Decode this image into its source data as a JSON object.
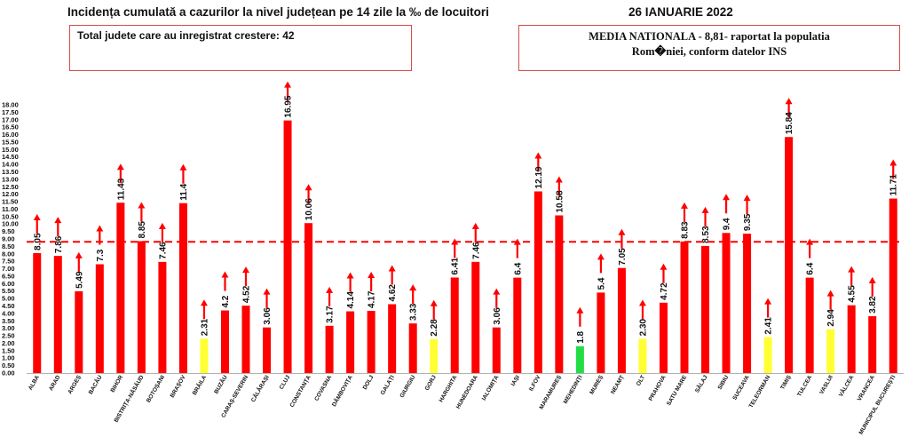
{
  "header": {
    "title": "Incidența cumulată a cazurilor la nivel județean pe 14 zile la ‰ de locuitori",
    "date": "26 IANUARIE 2022",
    "total_box": "Total judete care au inregistrat crestere: 42",
    "media_box_line1": "MEDIA NATIONALA - 8,81-  raportat la populatia",
    "media_box_line2": "Rom�niei, conform datelor INS"
  },
  "colors": {
    "bar_red": "#ff0000",
    "bar_yellow": "#ffff33",
    "bar_green": "#22dd44",
    "reference_line": "#ff0000",
    "arrow": "#ff0000"
  },
  "chart_data": {
    "type": "bar",
    "title": "Incidența cumulată a cazurilor la nivel județean pe 14 zile la ‰ de locuitori",
    "xlabel": "",
    "ylabel": "",
    "ylim": [
      0,
      18
    ],
    "ytick_step": 0.5,
    "ytick_labels": [
      "0.00",
      "0.50",
      "1.00",
      "1.50",
      "2.00",
      "2.50",
      "3.00",
      "3.50",
      "4.00",
      "4.50",
      "5.00",
      "5.50",
      "6.00",
      "6.50",
      "7.00",
      "7.50",
      "8.00",
      "8.50",
      "9.00",
      "9.50",
      "10.00",
      "10.50",
      "11.00",
      "11.50",
      "12.00",
      "12.50",
      "13.00",
      "13.50",
      "14.00",
      "14.50",
      "15.00",
      "15.50",
      "16.00",
      "16.50",
      "17.00",
      "17.50",
      "18.00"
    ],
    "reference_line": {
      "value": 8.81,
      "style": "dashed"
    },
    "grid": false,
    "increase_arrows": true,
    "categories": [
      "ALBA",
      "ARAD",
      "ARGEȘ",
      "BACĂU",
      "BIHOR",
      "BISTRIȚA-NĂSĂUD",
      "BOTOȘANI",
      "BRAȘOV",
      "BRĂILA",
      "BUZĂU",
      "CARAȘ-SEVERIN",
      "CĂLĂRAȘI",
      "CLUJ",
      "CONSTANȚA",
      "COVASNA",
      "DÂMBOVIȚA",
      "DOLJ",
      "GALAȚI",
      "GIURGIU",
      "GORJ",
      "HARGHITA",
      "HUNEDOARA",
      "IALOMIȚA",
      "IAȘI",
      "ILFOV",
      "MARAMUREȘ",
      "MEHEDINȚI",
      "MUREȘ",
      "NEAMȚ",
      "OLT",
      "PRAHOVA",
      "SATU MARE",
      "SĂLAJ",
      "SIBIU",
      "SUCEAVA",
      "TELEORMAN",
      "TIMIȘ",
      "TULCEA",
      "VASLUI",
      "VÂLCEA",
      "VRANCEA",
      "MUNICIPUL BUCUREȘTI"
    ],
    "values": [
      8.05,
      7.86,
      5.49,
      7.3,
      11.43,
      8.85,
      7.46,
      11.4,
      2.31,
      4.2,
      4.52,
      3.06,
      16.95,
      10.06,
      3.17,
      4.14,
      4.17,
      4.62,
      3.33,
      2.28,
      6.41,
      7.46,
      3.06,
      6.4,
      12.19,
      10.58,
      1.8,
      5.4,
      7.05,
      2.3,
      4.72,
      8.83,
      8.53,
      9.4,
      9.35,
      2.41,
      15.84,
      6.4,
      2.94,
      4.55,
      3.82,
      11.71
    ],
    "value_labels": [
      "8.05",
      "7.86",
      "5.49",
      "7.3",
      "11.43",
      "8.85",
      "7.46",
      "11.4",
      "2.31",
      "4.2",
      "4.52",
      "3.06",
      "16.95",
      "10.06",
      "3.17",
      "4.14",
      "4.17",
      "4.62",
      "3.33",
      "2.28",
      "6.41",
      "7.46",
      "3.06",
      "6.4",
      "12.19",
      "10.58",
      "1.8",
      "5.4",
      "7.05",
      "2.30",
      "4.72",
      "8.83",
      "8.53",
      "9.4",
      "9.35",
      "2.41",
      "15.84",
      "6.4",
      "2.94",
      "4.55",
      "3.82",
      "11.71"
    ],
    "bar_colors": [
      "red",
      "red",
      "red",
      "red",
      "red",
      "red",
      "red",
      "red",
      "yellow",
      "red",
      "red",
      "red",
      "red",
      "red",
      "red",
      "red",
      "red",
      "red",
      "red",
      "yellow",
      "red",
      "red",
      "red",
      "red",
      "red",
      "red",
      "green",
      "red",
      "red",
      "yellow",
      "red",
      "red",
      "red",
      "red",
      "red",
      "yellow",
      "red",
      "red",
      "yellow",
      "red",
      "red",
      "red"
    ]
  }
}
